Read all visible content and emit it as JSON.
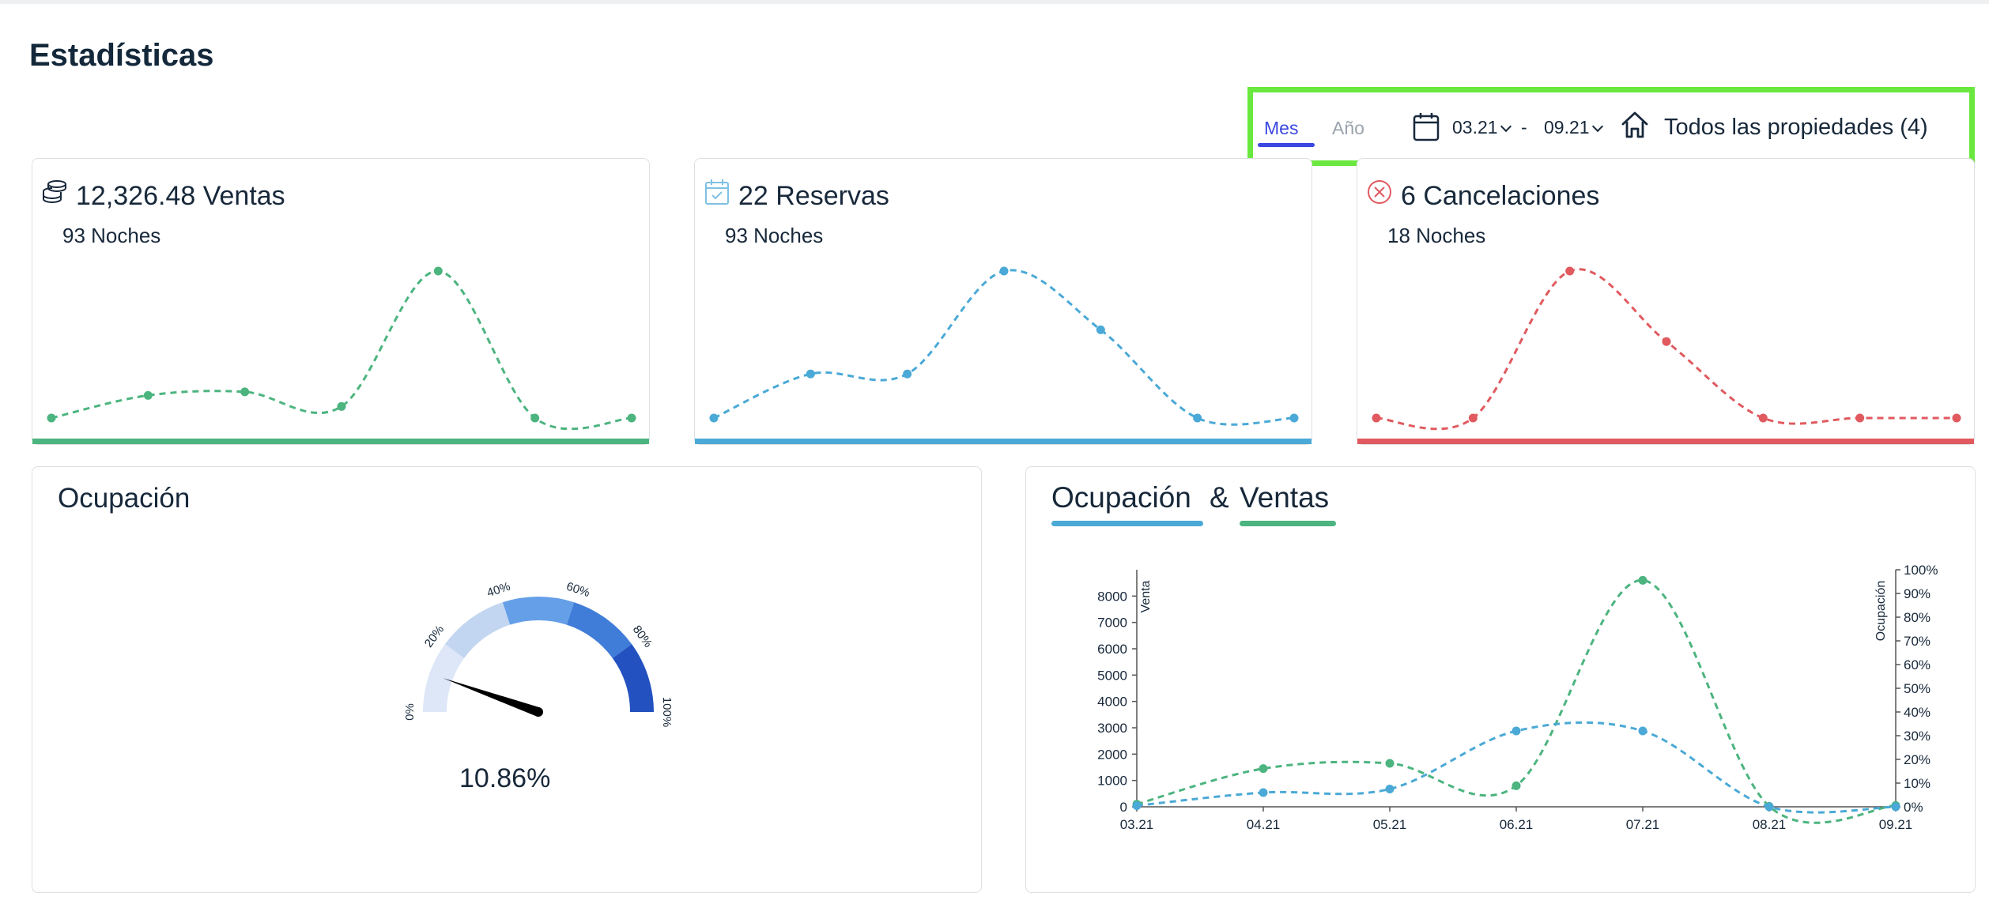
{
  "page": {
    "title": "Estadísticas"
  },
  "filters": {
    "period_tabs": [
      {
        "label": "Mes",
        "selected": true
      },
      {
        "label": "Año",
        "selected": false
      }
    ],
    "date_from": "03.21",
    "date_separator": "-",
    "date_to": "09.21",
    "property_select": "Todos las propiedades (4)",
    "icons": {
      "calendar": "calendar-icon",
      "property": "home-icon"
    }
  },
  "kpis": [
    {
      "icon": "coins-icon",
      "title": "12,326.48 Ventas",
      "subtitle": "93 Noches",
      "color": "#4cb47f",
      "trend": [
        2100,
        2550,
        2620,
        2330,
        5020,
        2100,
        2100
      ]
    },
    {
      "icon": "calendar-check-icon",
      "title": "22 Reservas",
      "subtitle": "93 Noches",
      "color": "#4aa9d6",
      "trend": [
        1,
        4,
        4,
        11,
        7,
        1,
        1
      ]
    },
    {
      "icon": "cancel-circle-icon",
      "title": "6 Cancelaciones",
      "subtitle": "18 Noches",
      "color": "#e05a5f",
      "trend": [
        0,
        0,
        5,
        2.6,
        0,
        0,
        0
      ]
    }
  ],
  "occupancy": {
    "title": "Ocupación",
    "value": "10.86%",
    "percent": 10.86,
    "tick_labels": [
      "0%",
      "20%",
      "40%",
      "60%",
      "80%",
      "100%"
    ],
    "band_colors": [
      "#dde7f7",
      "#c3d6f1",
      "#659fe8",
      "#3f7dd8",
      "#2352c0"
    ]
  },
  "occ_sales": {
    "legend": [
      {
        "label": "Ocupación",
        "color": "#4aa9d6"
      },
      {
        "label": "Ventas",
        "color": "#4cb47f"
      }
    ]
  },
  "chart_data": {
    "type": "line",
    "categories": [
      "03.21",
      "04.21",
      "05.21",
      "06.21",
      "07.21",
      "08.21",
      "09.21"
    ],
    "series": [
      {
        "name": "Ventas",
        "axis": "left",
        "color": "#4cb47f",
        "values": [
          100,
          1450,
          1650,
          800,
          8600,
          20,
          50
        ]
      },
      {
        "name": "Ocupación",
        "axis": "right",
        "color": "#4aa9d6",
        "values": [
          0.5,
          6,
          7.5,
          32,
          32,
          0,
          0
        ]
      }
    ],
    "ylabel": "Venta",
    "y2label": "Ocupación",
    "ylim": [
      0,
      9000
    ],
    "yticks": [
      "0",
      "1000",
      "2000",
      "3000",
      "4000",
      "5000",
      "6000",
      "7000",
      "8000"
    ],
    "y2lim": [
      0,
      100
    ],
    "y2ticks": [
      "0%",
      "10%",
      "20%",
      "30%",
      "40%",
      "50%",
      "60%",
      "70%",
      "80%",
      "90%",
      "100%"
    ],
    "grid": false
  }
}
